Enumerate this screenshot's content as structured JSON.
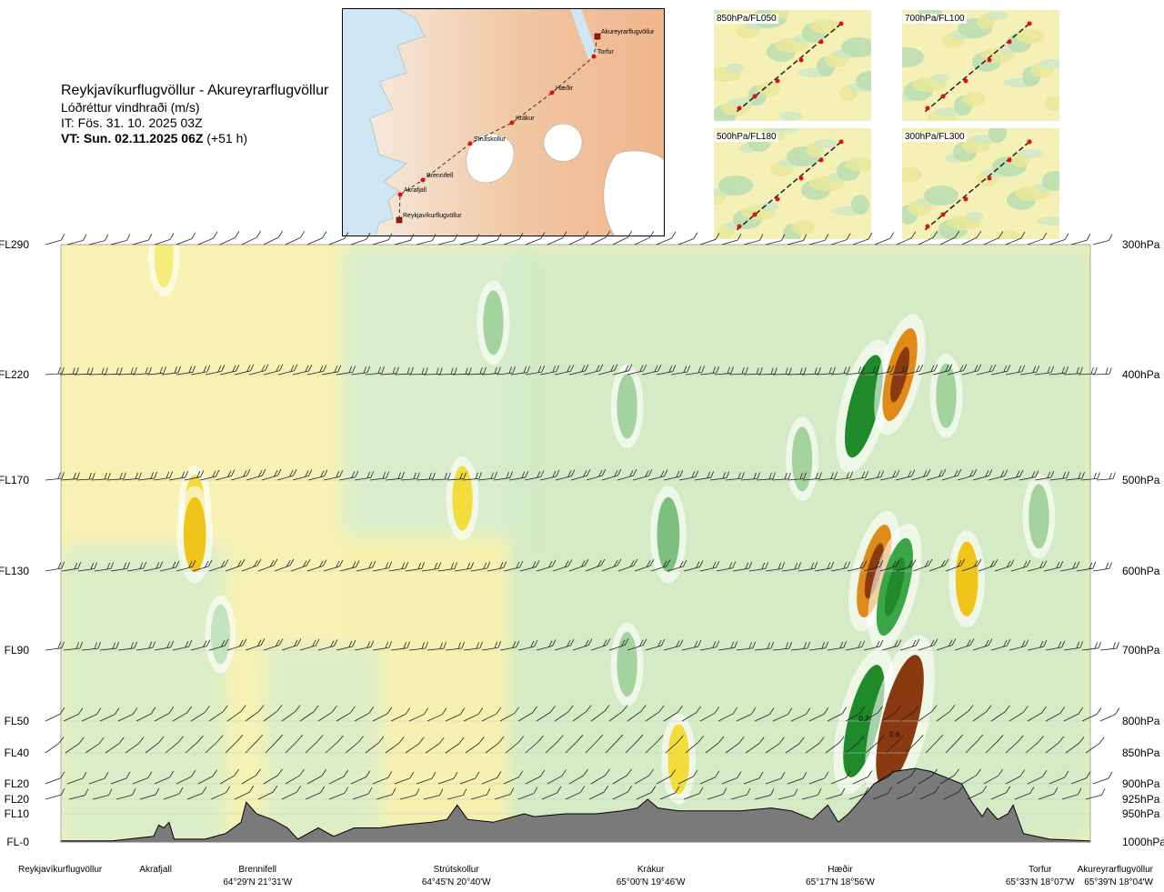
{
  "header": {
    "title": "Reykjavíkurflugvöllur - Akureyrarflugvöllur",
    "subtitle": "Lóðréttur vindhraði (m/s)",
    "issue_time": "IT: Fös. 31. 10. 2025 03Z",
    "valid_time_bold": "VT: Sun. 02.11.2025 06Z",
    "valid_time_offset": " (+51 h)"
  },
  "map": {
    "places": [
      {
        "name": "Akureyrarflugvöllur",
        "kind": "airport"
      },
      {
        "name": "Torfur",
        "kind": "point"
      },
      {
        "name": "Hæðir",
        "kind": "point"
      },
      {
        "name": "Krákur",
        "kind": "point"
      },
      {
        "name": "Strútskollur",
        "kind": "point"
      },
      {
        "name": "Brennifell",
        "kind": "point"
      },
      {
        "name": "Akrafjall",
        "kind": "point"
      },
      {
        "name": "Reykjavíkurflugvöllur",
        "kind": "airport"
      }
    ]
  },
  "thumbnails": [
    {
      "label": "850hPa/FL050"
    },
    {
      "label": "700hPa/FL100"
    },
    {
      "label": "500hPa/FL180"
    },
    {
      "label": "300hPa/FL300"
    }
  ],
  "chart_data": {
    "type": "heatmap",
    "title": "Lóðréttur vindhraði (m/s)",
    "y_left_ticks": [
      {
        "label": "FL290",
        "hpa": 300
      },
      {
        "label": "FL220",
        "hpa": 400
      },
      {
        "label": "FL170",
        "hpa": 500
      },
      {
        "label": "FL130",
        "hpa": 600
      },
      {
        "label": "FL90",
        "hpa": 700
      },
      {
        "label": "FL50",
        "hpa": 800
      },
      {
        "label": "FL40",
        "hpa": 850
      },
      {
        "label": "FL20",
        "hpa": 900
      },
      {
        "label": "FL20",
        "hpa": 925
      },
      {
        "label": "FL10",
        "hpa": 950
      },
      {
        "label": "FL-0",
        "hpa": 1000
      }
    ],
    "y_right_ticks": [
      "300hPa",
      "400hPa",
      "500hPa",
      "600hPa",
      "700hPa",
      "800hPa",
      "850hPa",
      "900hPa",
      "925hPa",
      "950hPa",
      "1000hPa"
    ],
    "x_stations": [
      {
        "name": "Reykjavíkurflugvöllur",
        "coord": "",
        "pos": 0.0
      },
      {
        "name": "Akrafjall",
        "coord": "",
        "pos": 0.092
      },
      {
        "name": "Brennifell",
        "coord": "64°29'N 21°31'W",
        "pos": 0.191
      },
      {
        "name": "Strútskollur",
        "coord": "64°45'N 20°40'W",
        "pos": 0.384
      },
      {
        "name": "Krákur",
        "coord": "65°00'N 19°46'W",
        "pos": 0.573
      },
      {
        "name": "Hæðir",
        "coord": "65°17'N 18°56'W",
        "pos": 0.757
      },
      {
        "name": "Torfur",
        "coord": "65°33'N 18°07'W",
        "pos": 0.96
      },
      {
        "name": "Akureyrarflugvöllur",
        "coord": "65°39'N 18°04'W",
        "pos": 1.0
      }
    ],
    "annotations": [
      "0.7",
      "0.6"
    ],
    "terrain_hpa": [
      [
        0.0,
        998
      ],
      [
        0.05,
        998
      ],
      [
        0.09,
        990
      ],
      [
        0.095,
        970
      ],
      [
        0.1,
        975
      ],
      [
        0.105,
        965
      ],
      [
        0.11,
        995
      ],
      [
        0.14,
        995
      ],
      [
        0.16,
        985
      ],
      [
        0.175,
        965
      ],
      [
        0.18,
        930
      ],
      [
        0.19,
        950
      ],
      [
        0.205,
        960
      ],
      [
        0.22,
        975
      ],
      [
        0.23,
        995
      ],
      [
        0.25,
        975
      ],
      [
        0.265,
        990
      ],
      [
        0.285,
        975
      ],
      [
        0.31,
        975
      ],
      [
        0.33,
        970
      ],
      [
        0.36,
        965
      ],
      [
        0.375,
        960
      ],
      [
        0.385,
        935
      ],
      [
        0.395,
        960
      ],
      [
        0.42,
        965
      ],
      [
        0.44,
        955
      ],
      [
        0.45,
        950
      ],
      [
        0.46,
        955
      ],
      [
        0.49,
        950
      ],
      [
        0.52,
        950
      ],
      [
        0.545,
        945
      ],
      [
        0.56,
        940
      ],
      [
        0.57,
        925
      ],
      [
        0.58,
        940
      ],
      [
        0.6,
        945
      ],
      [
        0.63,
        945
      ],
      [
        0.66,
        945
      ],
      [
        0.69,
        940
      ],
      [
        0.71,
        945
      ],
      [
        0.73,
        960
      ],
      [
        0.745,
        935
      ],
      [
        0.755,
        965
      ],
      [
        0.765,
        950
      ],
      [
        0.775,
        930
      ],
      [
        0.79,
        900
      ],
      [
        0.81,
        880
      ],
      [
        0.83,
        875
      ],
      [
        0.845,
        880
      ],
      [
        0.86,
        890
      ],
      [
        0.875,
        900
      ],
      [
        0.885,
        930
      ],
      [
        0.895,
        955
      ],
      [
        0.9,
        940
      ],
      [
        0.91,
        960
      ],
      [
        0.92,
        950
      ],
      [
        0.925,
        935
      ],
      [
        0.935,
        985
      ],
      [
        0.96,
        995
      ],
      [
        1.0,
        998
      ]
    ],
    "vertical_velocity_cells": [
      {
        "x": 0.1,
        "hpa": 310,
        "value": 0.1
      },
      {
        "x": 0.13,
        "hpa": 530,
        "value": 0.2
      },
      {
        "x": 0.13,
        "hpa": 560,
        "value": 0.4
      },
      {
        "x": 0.155,
        "hpa": 680,
        "value": -0.1
      },
      {
        "x": 0.39,
        "hpa": 520,
        "value": 0.2
      },
      {
        "x": 0.42,
        "hpa": 360,
        "value": -0.2
      },
      {
        "x": 0.55,
        "hpa": 430,
        "value": -0.2
      },
      {
        "x": 0.55,
        "hpa": 720,
        "value": -0.2
      },
      {
        "x": 0.59,
        "hpa": 560,
        "value": -0.4
      },
      {
        "x": 0.6,
        "hpa": 860,
        "value": 0.3
      },
      {
        "x": 0.72,
        "hpa": 480,
        "value": -0.2
      },
      {
        "x": 0.78,
        "hpa": 430,
        "value": -1.0
      },
      {
        "x": 0.78,
        "hpa": 800,
        "value": -1.2
      },
      {
        "x": 0.79,
        "hpa": 600,
        "value": 0.8
      },
      {
        "x": 0.815,
        "hpa": 800,
        "value": 1.6
      },
      {
        "x": 0.815,
        "hpa": 400,
        "value": 0.8
      },
      {
        "x": 0.81,
        "hpa": 620,
        "value": -0.9
      },
      {
        "x": 0.86,
        "hpa": 420,
        "value": -0.2
      },
      {
        "x": 0.88,
        "hpa": 610,
        "value": 0.4
      },
      {
        "x": 0.95,
        "hpa": 540,
        "value": -0.2
      }
    ]
  }
}
